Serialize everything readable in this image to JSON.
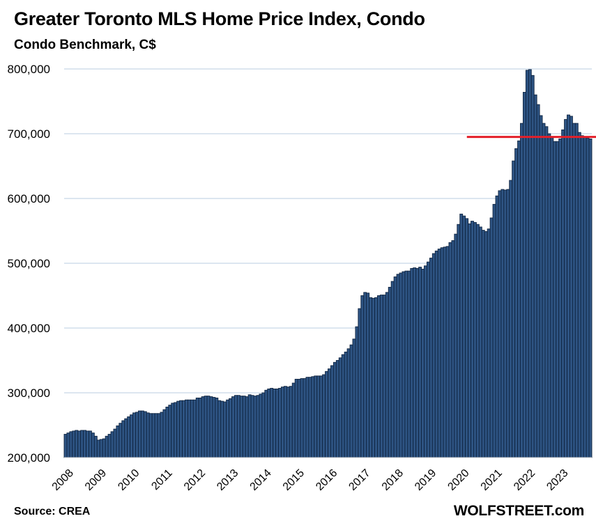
{
  "header": {
    "title": "Greater Toronto MLS Home Price Index, Condo",
    "subtitle": "Condo Benchmark, C$"
  },
  "footer": {
    "source": "Source: CREA",
    "brand": "WOLFSTREET.com"
  },
  "colors": {
    "bar_fill": "#2E5483",
    "bar_stroke": "#0F2440",
    "gridline": "#B8CCE0",
    "reference_line": "#E3202A"
  },
  "chart_data": {
    "type": "bar",
    "title": "Greater Toronto MLS Home Price Index, Condo",
    "subtitle": "Condo Benchmark, C$",
    "xlabel": "",
    "ylabel": "",
    "frequency": "monthly",
    "start": "2008-01",
    "end": "2023-12",
    "ylim": [
      200000,
      800000
    ],
    "yticks": [
      200000,
      300000,
      400000,
      500000,
      600000,
      700000,
      800000
    ],
    "ytick_labels": [
      "200,000",
      "300,000",
      "400,000",
      "500,000",
      "600,000",
      "700,000",
      "800,000"
    ],
    "xtick_labels": [
      "2008",
      "2009",
      "2010",
      "2011",
      "2012",
      "2013",
      "2014",
      "2015",
      "2016",
      "2017",
      "2018",
      "2019",
      "2020",
      "2021",
      "2022",
      "2023"
    ],
    "grid": true,
    "legend": "none",
    "reference_line": {
      "value": 695000,
      "from": "2020-01",
      "to": "2023-12",
      "label": ""
    },
    "values": [
      236000,
      238000,
      240000,
      241000,
      242000,
      241000,
      242000,
      242000,
      241000,
      241000,
      238000,
      233000,
      227000,
      228000,
      229000,
      233000,
      236000,
      240000,
      244000,
      249000,
      253000,
      257000,
      260000,
      263000,
      266000,
      269000,
      270000,
      272000,
      272000,
      271000,
      269000,
      268000,
      268000,
      268000,
      268000,
      270000,
      274000,
      278000,
      281000,
      284000,
      285000,
      287000,
      288000,
      288000,
      289000,
      289000,
      289000,
      289000,
      292000,
      292000,
      294000,
      295000,
      295000,
      294000,
      293000,
      292000,
      288000,
      287000,
      286000,
      289000,
      291000,
      294000,
      296000,
      296000,
      295000,
      295000,
      294000,
      297000,
      296000,
      295000,
      296000,
      298000,
      300000,
      304000,
      306000,
      307000,
      306000,
      306000,
      307000,
      309000,
      310000,
      309000,
      310000,
      315000,
      321000,
      321000,
      322000,
      322000,
      324000,
      324000,
      325000,
      326000,
      326000,
      326000,
      328000,
      333000,
      337000,
      342000,
      347000,
      350000,
      354000,
      359000,
      363000,
      368000,
      374000,
      383000,
      402000,
      430000,
      450000,
      455000,
      454000,
      447000,
      446000,
      447000,
      450000,
      451000,
      451000,
      455000,
      463000,
      472000,
      479000,
      483000,
      485000,
      487000,
      488000,
      488000,
      492000,
      493000,
      492000,
      494000,
      491000,
      496000,
      502000,
      508000,
      515000,
      519000,
      522000,
      524000,
      525000,
      526000,
      532000,
      535000,
      545000,
      560000,
      576000,
      573000,
      569000,
      561000,
      565000,
      563000,
      560000,
      556000,
      551000,
      549000,
      553000,
      570000,
      591000,
      604000,
      612000,
      614000,
      613000,
      614000,
      628000,
      658000,
      677000,
      689000,
      716000,
      764000,
      798000,
      799000,
      790000,
      760000,
      745000,
      728000,
      716000,
      711000,
      700000,
      694000,
      688000,
      688000,
      692000,
      706000,
      722000,
      729000,
      727000,
      716000,
      716000,
      702000,
      697000,
      694000,
      693000,
      692000
    ]
  }
}
